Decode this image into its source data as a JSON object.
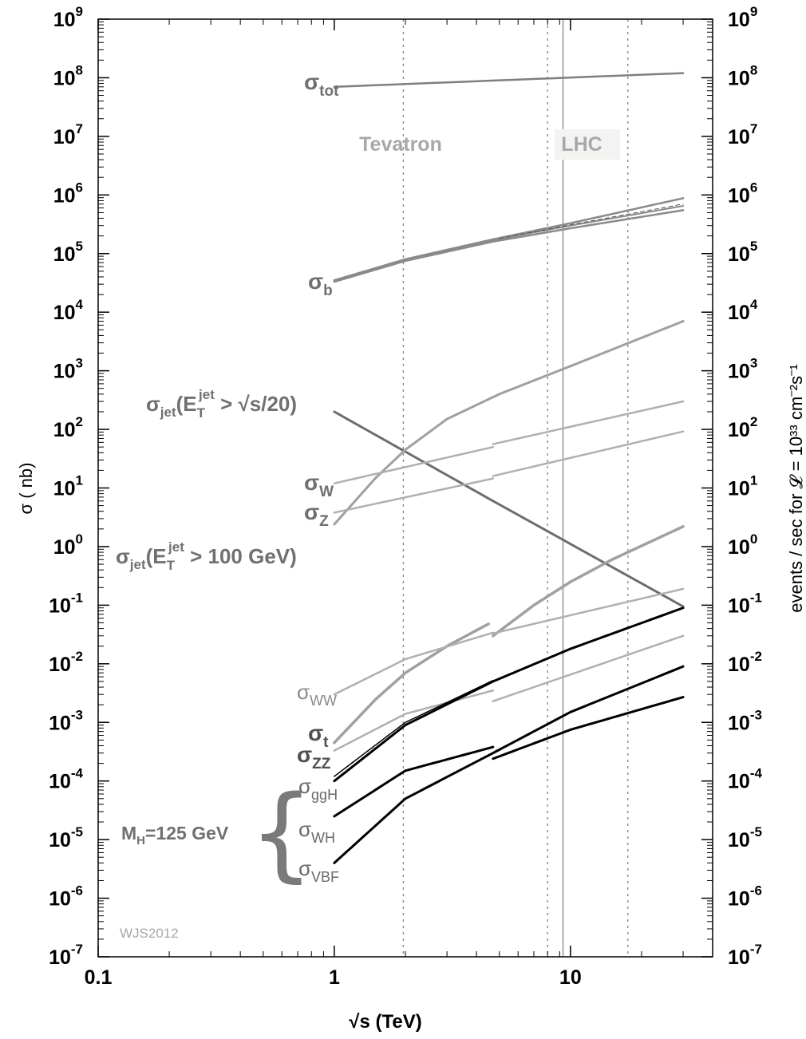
{
  "chart_data": {
    "type": "line",
    "xlabel": "√s  (TeV)",
    "ylabel": "σ ( nb)",
    "y2label": "events / sec for 𝓛 = 10³³ cm⁻²s⁻¹",
    "xscale": "log",
    "yscale": "log",
    "xlim": [
      0.1,
      40
    ],
    "ylim": [
      1e-07,
      1000000000.0
    ],
    "x_ticks": [
      {
        "value": 0.1,
        "label": "0.1"
      },
      {
        "value": 1,
        "label": "1"
      },
      {
        "value": 10,
        "label": "10"
      }
    ],
    "y_ticks": [
      {
        "exp": 9,
        "label": "10",
        "sup": "9"
      },
      {
        "exp": 8,
        "label": "10",
        "sup": "8"
      },
      {
        "exp": 7,
        "label": "10",
        "sup": "7"
      },
      {
        "exp": 6,
        "label": "10",
        "sup": "6"
      },
      {
        "exp": 5,
        "label": "10",
        "sup": "5"
      },
      {
        "exp": 4,
        "label": "10",
        "sup": "4"
      },
      {
        "exp": 3,
        "label": "10",
        "sup": "3"
      },
      {
        "exp": 2,
        "label": "10",
        "sup": "2"
      },
      {
        "exp": 1,
        "label": "10",
        "sup": "1"
      },
      {
        "exp": 0,
        "label": "10",
        "sup": "0"
      },
      {
        "exp": -1,
        "label": "10",
        "sup": "-1"
      },
      {
        "exp": -2,
        "label": "10",
        "sup": "-2"
      },
      {
        "exp": -3,
        "label": "10",
        "sup": "-3"
      },
      {
        "exp": -4,
        "label": "10",
        "sup": "-4"
      },
      {
        "exp": -5,
        "label": "10",
        "sup": "-5"
      },
      {
        "exp": -6,
        "label": "10",
        "sup": "-6"
      },
      {
        "exp": -7,
        "label": "10",
        "sup": "-7"
      }
    ],
    "vertical_lines": [
      {
        "x": 1.96,
        "style": "dotted"
      },
      {
        "x": 8,
        "style": "dotted"
      },
      {
        "x": 9.3,
        "style": "solid"
      },
      {
        "x": 17.5,
        "style": "dotted"
      }
    ],
    "annotations": {
      "tevatron": "Tevatron",
      "lhc": "LHC",
      "credit": "WJS2012",
      "mh": "M",
      "mh_sub": "H",
      "mh_tail": "=125 GeV",
      "brace": "{"
    },
    "labels": [
      {
        "id": "tot",
        "base": "σ",
        "sub": "tot"
      },
      {
        "id": "b",
        "base": "σ",
        "sub": "b"
      },
      {
        "id": "jet20",
        "base": "σ",
        "sub": "jet",
        "mid": "(E",
        "sub2": "T",
        "sup2": "jet",
        "tail": " > √s/20)"
      },
      {
        "id": "w",
        "base": "σ",
        "sub": "W"
      },
      {
        "id": "z",
        "base": "σ",
        "sub": "Z"
      },
      {
        "id": "jet100",
        "base": "σ",
        "sub": "jet",
        "mid": "(E",
        "sub2": "T",
        "sup2": "jet",
        "tail": " > 100 GeV)"
      },
      {
        "id": "ww",
        "base": "σ",
        "sub": "WW"
      },
      {
        "id": "t",
        "base": "σ",
        "sub": "t"
      },
      {
        "id": "zz",
        "base": "σ",
        "sub": "ZZ"
      },
      {
        "id": "ggh",
        "base": "σ",
        "sub": "ggH"
      },
      {
        "id": "wh",
        "base": "σ",
        "sub": "WH"
      },
      {
        "id": "vbf",
        "base": "σ",
        "sub": "VBF"
      }
    ],
    "series": [
      {
        "id": "tot",
        "color": "#7f7f7f",
        "width": 2.5,
        "points": [
          [
            1,
            70000000.0
          ],
          [
            30,
            120000000.0
          ]
        ]
      },
      {
        "id": "b-upper",
        "color": "#8a8a8a",
        "width": 2.5,
        "points": [
          [
            1,
            35000.0
          ],
          [
            2,
            80000.0
          ],
          [
            4.7,
            175000.0
          ],
          [
            10,
            330000.0
          ],
          [
            30,
            880000.0
          ]
        ]
      },
      {
        "id": "b-mid",
        "color": "#8a8a8a",
        "width": 2,
        "points": [
          [
            1,
            34000.0
          ],
          [
            2,
            78000.0
          ],
          [
            4.7,
            170000.0
          ],
          [
            10,
            300000.0
          ],
          [
            30,
            650000.0
          ]
        ]
      },
      {
        "id": "b-lower",
        "color": "#8a8a8a",
        "width": 2.5,
        "points": [
          [
            1,
            33000.0
          ],
          [
            2,
            75000.0
          ],
          [
            4.7,
            160000.0
          ],
          [
            10,
            270000.0
          ],
          [
            30,
            550000.0
          ]
        ]
      },
      {
        "id": "b-dashed",
        "color": "#555555",
        "width": 1,
        "dash": "5,4",
        "points": [
          [
            5,
            180000.0
          ],
          [
            10,
            310000.0
          ],
          [
            30,
            700000.0
          ]
        ]
      },
      {
        "id": "jet20",
        "color": "#6e6e6e",
        "width": 3,
        "points": [
          [
            1,
            200.0
          ],
          [
            4.7,
            6.0
          ],
          [
            30,
            0.095
          ]
        ]
      },
      {
        "id": "jet100",
        "color": "#a0a0a0",
        "width": 3,
        "points": [
          [
            1,
            2.4
          ],
          [
            1.5,
            15.0
          ],
          [
            2,
            45.0
          ],
          [
            3,
            150.0
          ],
          [
            5,
            400.0
          ],
          [
            10,
            1200.0
          ],
          [
            30,
            7000.0
          ]
        ]
      },
      {
        "id": "w-low",
        "color": "#b0b0b0",
        "width": 2.5,
        "points": [
          [
            1,
            12.0
          ],
          [
            4.7,
            50.0
          ]
        ]
      },
      {
        "id": "w-high",
        "color": "#b0b0b0",
        "width": 2.5,
        "points": [
          [
            4.7,
            56.0
          ],
          [
            30,
            300.0
          ]
        ]
      },
      {
        "id": "z-low",
        "color": "#b0b0b0",
        "width": 2.5,
        "points": [
          [
            1,
            3.8
          ],
          [
            4.7,
            14.5
          ]
        ]
      },
      {
        "id": "z-high",
        "color": "#b0b0b0",
        "width": 2.5,
        "points": [
          [
            4.7,
            16.0
          ],
          [
            30,
            92.0
          ]
        ]
      },
      {
        "id": "t-low",
        "color": "#a0a0a0",
        "width": 3.5,
        "points": [
          [
            1,
            0.00045
          ],
          [
            1.5,
            0.0025
          ],
          [
            2,
            0.007
          ],
          [
            3,
            0.02
          ],
          [
            4.5,
            0.048
          ]
        ]
      },
      {
        "id": "t-high",
        "color": "#a0a0a0",
        "width": 3.5,
        "points": [
          [
            4.7,
            0.03
          ],
          [
            7,
            0.1
          ],
          [
            10,
            0.25
          ],
          [
            15,
            0.6
          ],
          [
            30,
            2.2
          ]
        ]
      },
      {
        "id": "ww-low",
        "color": "#b0b0b0",
        "width": 2.5,
        "points": [
          [
            1,
            0.003
          ],
          [
            2,
            0.012
          ],
          [
            4.7,
            0.034
          ]
        ]
      },
      {
        "id": "ww-high",
        "color": "#b0b0b0",
        "width": 2.5,
        "points": [
          [
            4.7,
            0.033
          ],
          [
            30,
            0.19
          ]
        ]
      },
      {
        "id": "zz-low",
        "color": "#b0b0b0",
        "width": 2.5,
        "points": [
          [
            1,
            0.00033
          ],
          [
            2,
            0.0014
          ],
          [
            4.7,
            0.0035
          ]
        ]
      },
      {
        "id": "zz-high",
        "color": "#b0b0b0",
        "width": 2.5,
        "points": [
          [
            4.7,
            0.0023
          ],
          [
            30,
            0.03
          ]
        ]
      },
      {
        "id": "jet100-low",
        "color": "#000000",
        "width": 3,
        "points": [
          [
            1,
            0.0001
          ],
          [
            2,
            0.0009
          ],
          [
            4.7,
            0.005
          ],
          [
            10,
            0.018
          ],
          [
            30,
            0.09
          ]
        ]
      },
      {
        "id": "jet100-mid",
        "color": "#000000",
        "width": 1.5,
        "points": [
          [
            1,
            0.00012
          ],
          [
            2,
            0.001
          ],
          [
            4.7,
            0.0052
          ]
        ]
      },
      {
        "id": "ggh-low",
        "color": "#000000",
        "width": 3,
        "points": [
          [
            1,
            2.5e-05
          ],
          [
            2,
            0.00015
          ],
          [
            4.7,
            0.00038
          ]
        ]
      },
      {
        "id": "ggh-high",
        "color": "#000000",
        "width": 3,
        "points": [
          [
            4.7,
            0.00024
          ],
          [
            10,
            0.00075
          ],
          [
            30,
            0.0027
          ]
        ]
      },
      {
        "id": "vbf",
        "color": "#000000",
        "width": 3,
        "points": [
          [
            1,
            4e-06
          ],
          [
            2,
            5e-05
          ],
          [
            4.7,
            0.0003
          ],
          [
            10,
            0.0015
          ],
          [
            30,
            0.009
          ]
        ]
      }
    ]
  }
}
